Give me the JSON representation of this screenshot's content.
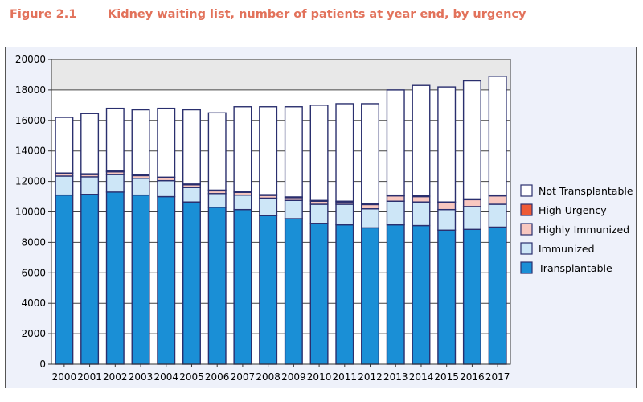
{
  "header": {
    "figure_label": "Figure 2.1",
    "title": "Kidney waiting list, number of patients at year end, by urgency"
  },
  "chart_data": {
    "type": "bar",
    "stacked": true,
    "title": "Kidney waiting list, number of patients at year end, by urgency",
    "xlabel": "",
    "ylabel": "",
    "ylim": [
      0,
      20000
    ],
    "yticks": [
      0,
      2000,
      4000,
      6000,
      8000,
      10000,
      12000,
      14000,
      16000,
      18000,
      20000
    ],
    "grid": true,
    "legend_position": "right",
    "categories": [
      "2000",
      "2001",
      "2002",
      "2003",
      "2004",
      "2005",
      "2006",
      "2007",
      "2008",
      "2009",
      "2010",
      "2011",
      "2012",
      "2013",
      "2014",
      "2015",
      "2016",
      "2017"
    ],
    "series": [
      {
        "name": "Transplantable",
        "color": "#1a8fd6",
        "values": [
          11100,
          11150,
          11300,
          11100,
          11000,
          10650,
          10300,
          10150,
          9750,
          9550,
          9250,
          9150,
          8950,
          9150,
          9100,
          8800,
          8850,
          9000
        ]
      },
      {
        "name": "Immunized",
        "color": "#cde6f7",
        "values": [
          1250,
          1150,
          1150,
          1100,
          1050,
          950,
          900,
          950,
          1150,
          1200,
          1250,
          1350,
          1250,
          1550,
          1550,
          1350,
          1500,
          1500
        ]
      },
      {
        "name": "Highly Immunized",
        "color": "#f8c7c0",
        "values": [
          150,
          150,
          180,
          180,
          180,
          180,
          180,
          180,
          180,
          180,
          200,
          150,
          280,
          350,
          350,
          450,
          450,
          550
        ]
      },
      {
        "name": "High Urgency",
        "color": "#ee5a36",
        "values": [
          50,
          50,
          50,
          50,
          50,
          50,
          50,
          50,
          50,
          50,
          50,
          50,
          50,
          50,
          50,
          50,
          50,
          50
        ]
      },
      {
        "name": "Not Transplantable",
        "color": "#ffffff",
        "values": [
          3650,
          3950,
          4120,
          4270,
          4520,
          4870,
          5070,
          5570,
          5770,
          5920,
          6250,
          6400,
          6570,
          6900,
          7250,
          7550,
          7750,
          7800
        ]
      }
    ],
    "legend_order": [
      "Not Transplantable",
      "High Urgency",
      "Highly Immunized",
      "Immunized",
      "Transplantable"
    ]
  }
}
